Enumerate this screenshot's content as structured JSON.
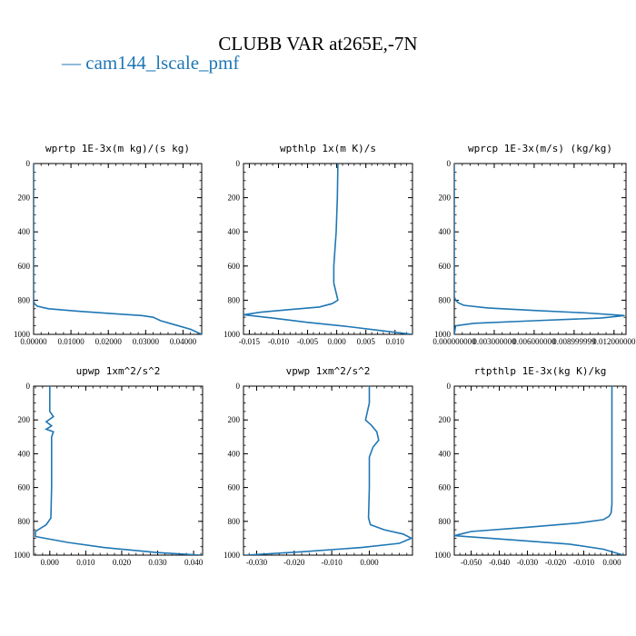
{
  "title": "CLUBB VAR at265E,-7N",
  "legend": {
    "label": "— cam144_lscale_pmf",
    "color": "#1f77b4"
  },
  "chart_data": [
    {
      "type": "line",
      "title": "wprtp  1E-3x(m kg)/(s kg)",
      "xlim": [
        0,
        0.045
      ],
      "ylim": [
        1000,
        0
      ],
      "xticks": [
        0,
        0.01,
        0.02,
        0.03,
        0.04
      ],
      "xticklabels": [
        "0.00000",
        "0.01000",
        "0.02000",
        "0.03000",
        "0.04000"
      ],
      "yticks": [
        0,
        200,
        400,
        600,
        800,
        1000
      ],
      "yticklabels": [
        "0",
        "200",
        "400",
        "600",
        "800",
        "1000"
      ],
      "series": [
        {
          "x": [
            0,
            0,
            0.0002,
            0.001,
            0.004,
            0.012,
            0.022,
            0.029,
            0.032,
            0.034,
            0.038,
            0.042,
            0.045
          ],
          "y": [
            0,
            800,
            820,
            835,
            850,
            865,
            880,
            890,
            900,
            920,
            945,
            970,
            1000
          ]
        }
      ]
    },
    {
      "type": "line",
      "title": "wpthlp  1x(m K)/s",
      "xlim": [
        -0.016,
        0.013
      ],
      "ylim": [
        1000,
        0
      ],
      "xticks": [
        -0.015,
        -0.01,
        -0.005,
        0,
        0.005,
        0.01
      ],
      "xticklabels": [
        "-0.015",
        "-0.010",
        "-0.005",
        "0.000",
        "0.005",
        "0.010"
      ],
      "yticks": [
        0,
        200,
        400,
        600,
        800,
        1000
      ],
      "yticklabels": [
        "0",
        "200",
        "400",
        "600",
        "800",
        "1000"
      ],
      "series": [
        {
          "x": [
            0.0002,
            0.0001,
            -0.0001,
            -0.0003,
            -0.0005,
            -0.0005,
            0.0002,
            -0.0008,
            -0.003,
            -0.008,
            -0.013,
            -0.016,
            -0.011,
            -0.005,
            0.002,
            0.008,
            0.013
          ],
          "y": [
            0,
            200,
            400,
            500,
            600,
            700,
            800,
            820,
            840,
            855,
            870,
            885,
            905,
            930,
            955,
            980,
            1000
          ]
        }
      ]
    },
    {
      "type": "line",
      "title": "wprcp  1E-3x(m/s) (kg/kg)",
      "xlim": [
        0,
        0.0129
      ],
      "ylim": [
        1000,
        0
      ],
      "xticks": [
        0,
        0.003,
        0.006,
        0.009,
        0.012
      ],
      "xticklabels": [
        "0.000000000",
        "0.003000000",
        "0.006000000",
        "0.008999999",
        "0.012000000"
      ],
      "yticks": [
        0,
        200,
        400,
        600,
        800,
        1000
      ],
      "yticklabels": [
        "0",
        "200",
        "400",
        "600",
        "800",
        "1000"
      ],
      "series": [
        {
          "x": [
            0,
            0,
            0.0001,
            0.0003,
            0.0007,
            0.0025,
            0.006,
            0.01,
            0.0128,
            0.011,
            0.006,
            0.0015,
            0.0001,
            0
          ],
          "y": [
            0,
            780,
            800,
            815,
            830,
            845,
            860,
            875,
            890,
            905,
            920,
            935,
            950,
            1000
          ]
        }
      ]
    },
    {
      "type": "line",
      "title": "upwp  1xm^2/s^2",
      "xlim": [
        -0.0045,
        0.0425
      ],
      "ylim": [
        1000,
        0
      ],
      "xticks": [
        0,
        0.01,
        0.02,
        0.03,
        0.04
      ],
      "xticklabels": [
        "0.000",
        "0.010",
        "0.020",
        "0.030",
        "0.040"
      ],
      "yticks": [
        0,
        200,
        400,
        600,
        800,
        1000
      ],
      "yticklabels": [
        "0",
        "200",
        "400",
        "600",
        "800",
        "1000"
      ],
      "series": [
        {
          "x": [
            0,
            0,
            0,
            0.001,
            -0.001,
            0.0005,
            -0.001,
            0.001,
            0.0005,
            0.0005,
            0.0005,
            0.0003,
            -0.001,
            -0.004,
            -0.004,
            0.005,
            0.015,
            0.03,
            0.042
          ],
          "y": [
            0,
            100,
            150,
            180,
            210,
            235,
            255,
            270,
            300,
            400,
            600,
            780,
            820,
            860,
            890,
            925,
            955,
            985,
            1000
          ]
        }
      ]
    },
    {
      "type": "line",
      "title": "vpwp  1xm^2/s^2",
      "xlim": [
        -0.0335,
        0.0115
      ],
      "ylim": [
        1000,
        0
      ],
      "xticks": [
        -0.03,
        -0.02,
        -0.01,
        0
      ],
      "xticklabels": [
        "-0.030",
        "-0.020",
        "-0.010",
        "0.000"
      ],
      "yticks": [
        0,
        200,
        400,
        600,
        800,
        1000
      ],
      "yticklabels": [
        "0",
        "200",
        "400",
        "600",
        "800",
        "1000"
      ],
      "series": [
        {
          "x": [
            0,
            0,
            -0.0005,
            -0.001,
            0.0005,
            0.002,
            0.0025,
            0.001,
            0,
            0,
            -0.0002,
            0.0003,
            0.004,
            0.009,
            0.0112,
            0.008,
            -0.002,
            -0.018,
            -0.033
          ],
          "y": [
            0,
            100,
            150,
            200,
            230,
            270,
            320,
            360,
            420,
            600,
            780,
            820,
            850,
            875,
            900,
            930,
            955,
            980,
            1000
          ]
        }
      ]
    },
    {
      "type": "line",
      "title": "rtpthlp  1E-3x(kg K)/kg",
      "xlim": [
        -0.056,
        0.005
      ],
      "ylim": [
        1000,
        0
      ],
      "xticks": [
        -0.05,
        -0.04,
        -0.03,
        -0.02,
        -0.01,
        0
      ],
      "xticklabels": [
        "-0.050",
        "-0.040",
        "-0.030",
        "-0.020",
        "-0.010",
        "0.000"
      ],
      "yticks": [
        0,
        200,
        400,
        600,
        800,
        1000
      ],
      "yticklabels": [
        "0",
        "200",
        "400",
        "600",
        "800",
        "1000"
      ],
      "series": [
        {
          "x": [
            0,
            0,
            -0.0003,
            -0.001,
            -0.003,
            -0.012,
            -0.03,
            -0.05,
            -0.056,
            -0.035,
            -0.015,
            -0.003,
            0.004
          ],
          "y": [
            0,
            700,
            750,
            770,
            790,
            810,
            835,
            860,
            885,
            910,
            935,
            965,
            1000
          ]
        }
      ]
    }
  ]
}
